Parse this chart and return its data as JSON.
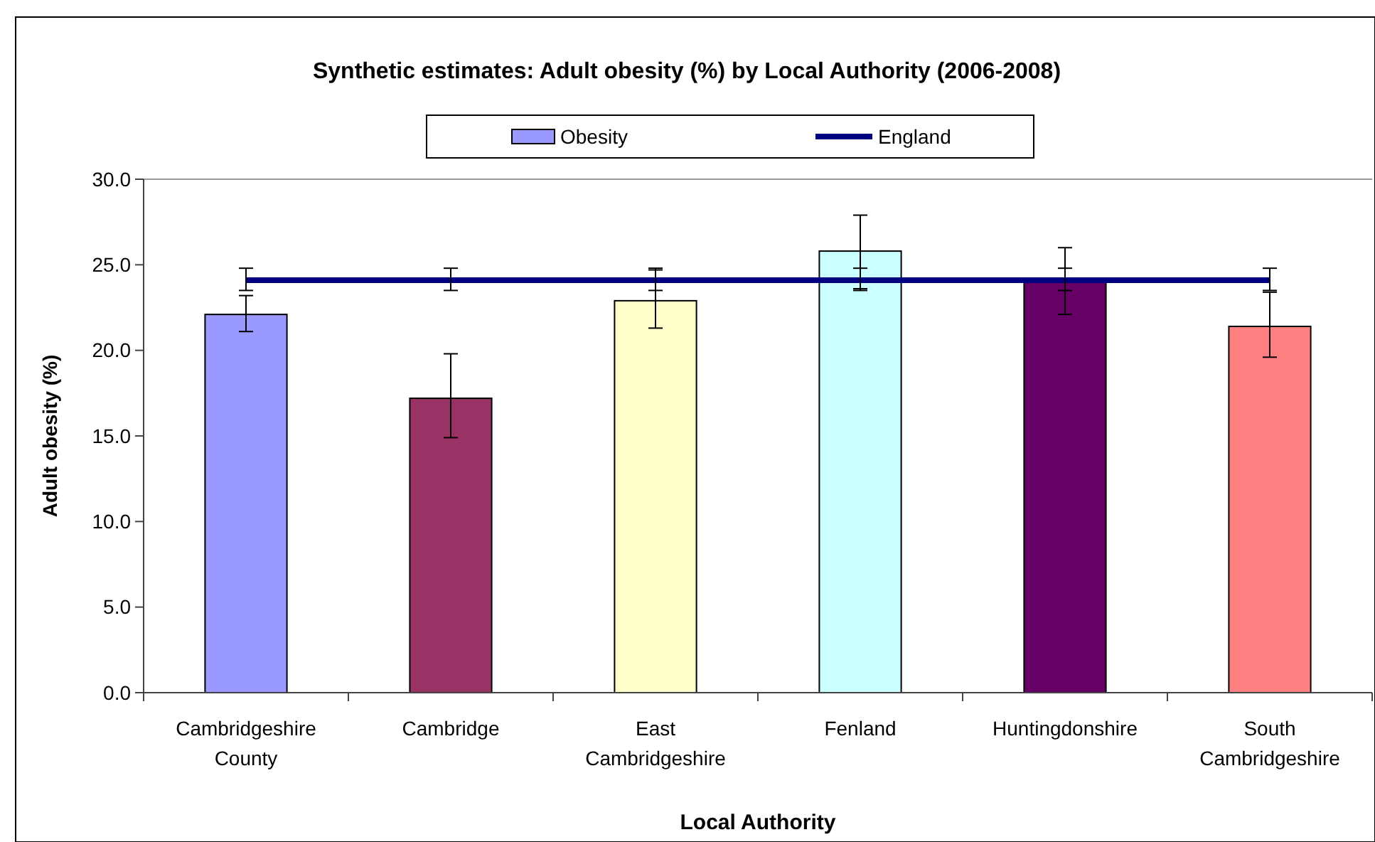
{
  "chart_data": {
    "type": "bar",
    "title": "Synthetic estimates: Adult obesity (%) by Local Authority (2006-2008)",
    "xlabel": "Local Authority",
    "ylabel": "Adult obesity (%)",
    "categories": [
      "Cambridgeshire County",
      "Cambridge",
      "East Cambridgeshire",
      "Fenland",
      "Huntingdonshire",
      "South Cambridgeshire"
    ],
    "series": [
      {
        "name": "Obesity",
        "color": "#9999ff",
        "colors": [
          "#9999ff",
          "#993366",
          "#ffffcc",
          "#ccffff",
          "#660066",
          "#ff8080"
        ],
        "values": [
          22.1,
          17.2,
          22.9,
          25.8,
          24.1,
          21.4
        ],
        "errors": [
          [
            21.1,
            23.2
          ],
          [
            14.9,
            19.8
          ],
          [
            21.3,
            24.7
          ],
          [
            23.6,
            27.9
          ],
          [
            22.1,
            26.0
          ],
          [
            19.6,
            23.4
          ]
        ]
      },
      {
        "name": "England",
        "type": "line",
        "color": "#000080",
        "values": [
          24.1,
          24.1,
          24.1,
          24.1,
          24.1,
          24.1
        ],
        "errors": [
          [
            23.5,
            24.8
          ],
          [
            23.5,
            24.8
          ],
          [
            23.5,
            24.8
          ],
          [
            23.5,
            24.8
          ],
          [
            23.5,
            24.8
          ],
          [
            23.5,
            24.8
          ]
        ]
      }
    ],
    "ylim": [
      0,
      30
    ],
    "yticks": [
      {
        "value": 0,
        "label": "0.0"
      },
      {
        "value": 5,
        "label": "5.0"
      },
      {
        "value": 10,
        "label": "10.0"
      },
      {
        "value": 15,
        "label": "15.0"
      },
      {
        "value": 20,
        "label": "20.0"
      },
      {
        "value": 25,
        "label": "25.0"
      },
      {
        "value": 30,
        "label": "30.0"
      }
    ],
    "grid": false,
    "legend": "top",
    "marker": "none",
    "line_style": "solid"
  }
}
